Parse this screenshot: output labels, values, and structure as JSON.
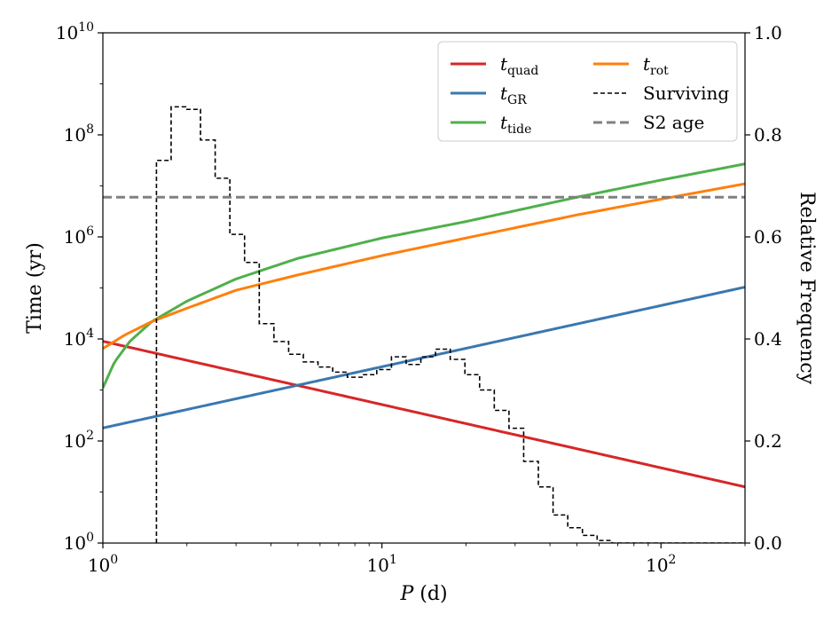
{
  "chart_data": {
    "type": "line",
    "title": "",
    "xlabel": "P (d)",
    "ylabel_left": "Time (yr)",
    "ylabel_right": "Relative Frequency",
    "xscale": "log",
    "yscale": "log",
    "xlim": [
      1,
      200
    ],
    "ylim": [
      1,
      10000000000
    ],
    "ylim_right": [
      0,
      1
    ],
    "x_ticks": [
      1,
      10,
      100
    ],
    "x_tick_labels": [
      {
        "base": "10",
        "exp": "0"
      },
      {
        "base": "10",
        "exp": "1"
      },
      {
        "base": "10",
        "exp": "2"
      }
    ],
    "y_ticks": [
      1,
      100,
      10000,
      1000000,
      100000000,
      10000000000
    ],
    "y_tick_labels": [
      {
        "base": "10",
        "exp": "0"
      },
      {
        "base": "10",
        "exp": "2"
      },
      {
        "base": "10",
        "exp": "4"
      },
      {
        "base": "10",
        "exp": "6"
      },
      {
        "base": "10",
        "exp": "8"
      },
      {
        "base": "10",
        "exp": "10"
      }
    ],
    "y_right_ticks": [
      0.0,
      0.2,
      0.4,
      0.6,
      0.8,
      1.0
    ],
    "y_right_tick_labels": [
      "0.0",
      "0.2",
      "0.4",
      "0.6",
      "0.8",
      "1.0"
    ],
    "legend_position": "top-right",
    "series": [
      {
        "name": "t_quad",
        "label_main": "t",
        "label_sub": "quad",
        "color": "#d62728",
        "style": "solid",
        "model": "power",
        "a": 9000,
        "b": -1.24
      },
      {
        "name": "t_GR",
        "label_main": "t",
        "label_sub": "GR",
        "color": "#3a78b0",
        "style": "solid",
        "model": "power",
        "a": 180,
        "b": 1.2
      },
      {
        "name": "t_tide",
        "label_main": "t",
        "label_sub": "tide",
        "color": "#4fb04b",
        "style": "solid",
        "model": "points",
        "x": [
          1.0,
          1.1,
          1.25,
          1.5,
          2.0,
          3.0,
          5.0,
          10.0,
          20.0,
          50.0,
          100.0,
          200.0
        ],
        "y": [
          1100,
          3500,
          9000,
          22000,
          55000,
          150000,
          380000,
          950000,
          2000000,
          6000000,
          13000000,
          27000000
        ]
      },
      {
        "name": "t_rot",
        "label_main": "t",
        "label_sub": "rot",
        "color": "#ff7f0e",
        "style": "solid",
        "model": "points",
        "x": [
          1.0,
          1.2,
          1.5,
          2.0,
          3.0,
          5.0,
          10.0,
          20.0,
          50.0,
          100.0,
          200.0
        ],
        "y": [
          6500,
          12000,
          22000,
          40000,
          90000,
          180000,
          430000,
          950000,
          2700000,
          5500000,
          11000000
        ]
      },
      {
        "name": "Surviving",
        "label_main": "Surviving",
        "color": "#000000",
        "style": "dashed-step",
        "axis": "right",
        "edges": [
          1.556,
          1.756,
          1.982,
          2.238,
          2.526,
          2.852,
          3.219,
          3.634,
          4.102,
          4.631,
          5.228,
          5.901,
          6.662,
          7.52,
          8.489,
          9.583,
          10.818,
          12.212,
          13.786,
          15.562,
          17.568,
          19.832,
          22.388,
          25.272,
          28.528,
          32.206,
          36.357,
          41.042,
          46.332,
          52.303,
          59.044,
          66.654
        ],
        "values": [
          0.75,
          0.855,
          0.85,
          0.79,
          0.715,
          0.605,
          0.55,
          0.43,
          0.395,
          0.37,
          0.355,
          0.345,
          0.335,
          0.325,
          0.33,
          0.34,
          0.365,
          0.35,
          0.365,
          0.38,
          0.36,
          0.33,
          0.3,
          0.26,
          0.225,
          0.16,
          0.11,
          0.055,
          0.03,
          0.015,
          0.005
        ]
      },
      {
        "name": "S2 age",
        "label_main": "S2 age",
        "color": "#808080",
        "style": "dashed",
        "value": 6000000
      }
    ],
    "legend": [
      {
        "key": "t_quad",
        "main": "t",
        "sub": "quad"
      },
      {
        "key": "t_rot",
        "main": "t",
        "sub": "rot"
      },
      {
        "key": "t_GR",
        "main": "t",
        "sub": "GR"
      },
      {
        "key": "Surviving",
        "main": "Surviving",
        "sub": ""
      },
      {
        "key": "t_tide",
        "main": "t",
        "sub": "tide"
      },
      {
        "key": "S2 age",
        "main": "S2 age",
        "sub": ""
      }
    ]
  }
}
